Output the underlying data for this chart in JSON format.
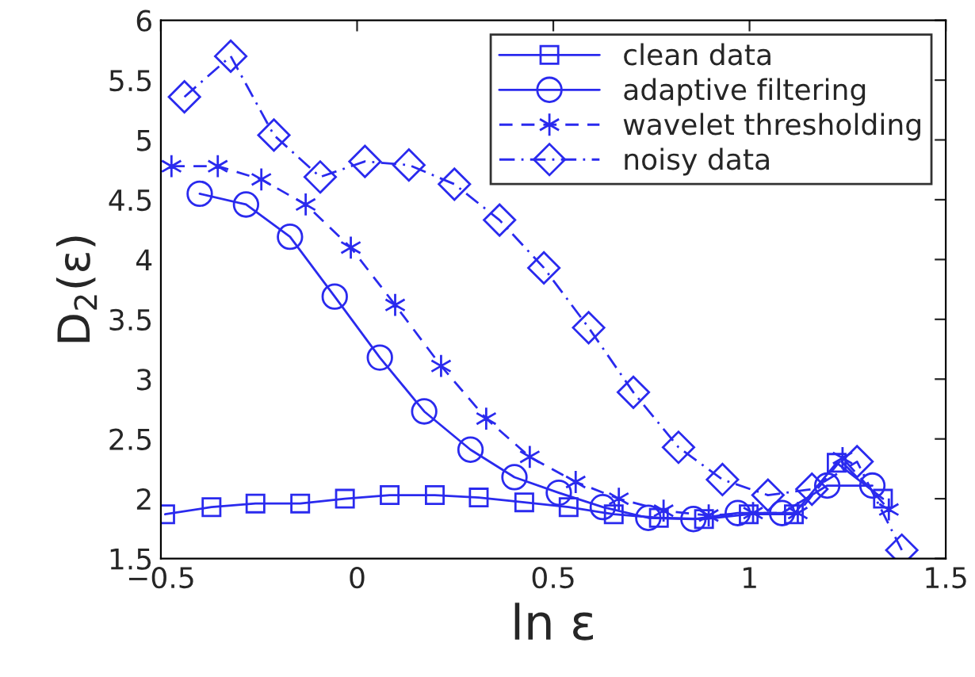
{
  "chart_data": {
    "type": "line",
    "xlabel": "ln ε",
    "ylabel": "D$_{2}$(ε)",
    "xlim": [
      -0.5,
      1.5
    ],
    "xticks": [
      {
        "value": -0.5,
        "label": "−0.5"
      },
      0,
      0.5,
      1,
      1.5
    ],
    "ylim": [
      1.5,
      6
    ],
    "yticks": [
      1.5,
      2,
      2.5,
      3,
      3.5,
      4,
      4.5,
      5,
      5.5,
      6
    ],
    "grid": false,
    "legend": "top right",
    "series": [
      {
        "name": "clean data",
        "color": "#2a2aee",
        "marker": "square",
        "line_style": "solid",
        "x": [
          -0.489,
          -0.371,
          -0.259,
          -0.145,
          -0.031,
          0.083,
          0.198,
          0.31,
          0.426,
          0.539,
          0.654,
          0.769,
          0.884,
          0.998,
          1.113,
          1.222,
          1.34
        ],
        "values": [
          1.87,
          1.93,
          1.96,
          1.96,
          2.0,
          2.03,
          2.03,
          2.01,
          1.97,
          1.93,
          1.87,
          1.84,
          1.83,
          1.87,
          1.87,
          2.3,
          2.0
        ]
      },
      {
        "name": "adaptive filtering",
        "color": "#2a2aee",
        "marker": "circle",
        "line_style": "solid",
        "x": [
          -0.401,
          -0.283,
          -0.171,
          -0.057,
          0.058,
          0.171,
          0.289,
          0.401,
          0.514,
          0.626,
          0.742,
          0.857,
          0.97,
          1.083,
          1.198,
          1.313
        ],
        "values": [
          4.55,
          4.46,
          4.19,
          3.69,
          3.18,
          2.73,
          2.41,
          2.18,
          2.05,
          1.93,
          1.84,
          1.83,
          1.88,
          1.88,
          2.11,
          2.11
        ]
      },
      {
        "name": "wavelet thresholding",
        "color": "#2a2aee",
        "marker": "cross",
        "line_style": "dashed",
        "x": [
          -0.473,
          -0.355,
          -0.244,
          -0.131,
          -0.016,
          0.097,
          0.214,
          0.329,
          0.44,
          0.557,
          0.667,
          0.781,
          0.896,
          1.009,
          1.123,
          1.237,
          1.355
        ],
        "values": [
          4.78,
          4.78,
          4.67,
          4.46,
          4.1,
          3.62,
          3.11,
          2.67,
          2.35,
          2.14,
          2.0,
          1.9,
          1.86,
          1.88,
          1.88,
          2.34,
          1.91
        ]
      },
      {
        "name": "noisy data",
        "color": "#2a2aee",
        "marker": "diamond",
        "line_style": "dashdot",
        "x": [
          -0.44,
          -0.322,
          -0.212,
          -0.094,
          0.02,
          0.132,
          0.248,
          0.363,
          0.476,
          0.59,
          0.704,
          0.819,
          0.931,
          1.047,
          1.159,
          1.274,
          1.388
        ],
        "values": [
          5.36,
          5.7,
          5.04,
          4.69,
          4.82,
          4.79,
          4.63,
          4.33,
          3.93,
          3.43,
          2.89,
          2.43,
          2.16,
          2.03,
          2.08,
          2.31,
          1.57
        ]
      }
    ]
  }
}
